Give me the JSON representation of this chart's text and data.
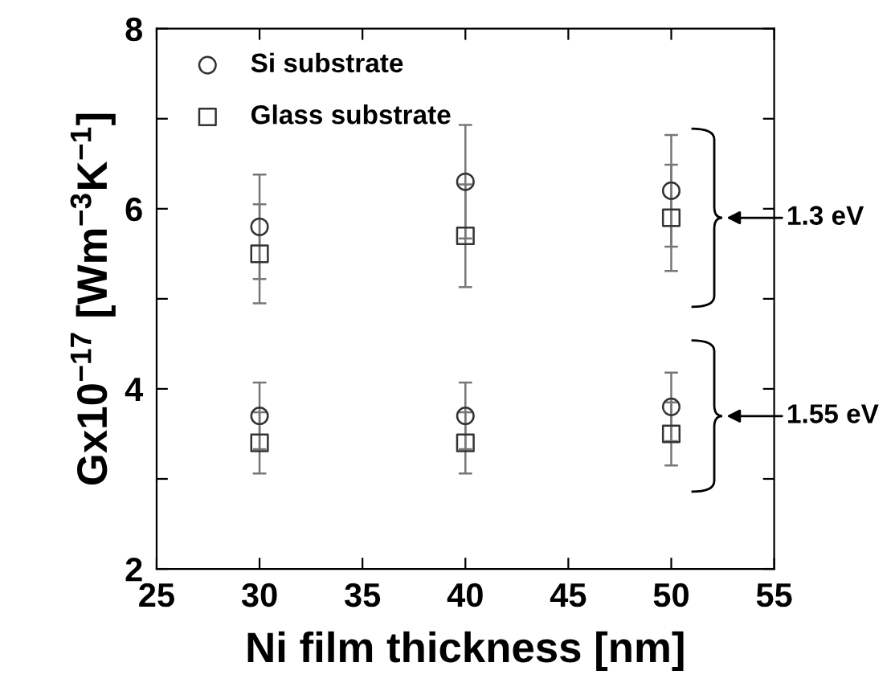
{
  "chart_data": {
    "type": "scatter",
    "xlabel": "Ni film thickness [nm]",
    "ylabel": "Gx10$^{−17}$ [Wm$^{−3}$K$^{−1}$]",
    "series": [
      {
        "name": "Si substrate",
        "color": "#333333",
        "marker": "circle",
        "x": [
          30,
          40,
          50,
          30,
          40,
          50
        ],
        "values": [
          5.8,
          6.3,
          6.2,
          3.7,
          3.7,
          3.8
        ],
        "errors": [
          0.58,
          0.63,
          0.62,
          0.37,
          0.37,
          0.38
        ]
      },
      {
        "name": "Glass substrate",
        "color": "#333333",
        "marker": "square",
        "x": [
          30,
          40,
          50,
          30,
          40,
          50
        ],
        "values": [
          5.5,
          5.7,
          5.9,
          3.4,
          3.4,
          3.5
        ],
        "errors": [
          0.55,
          0.57,
          0.59,
          0.34,
          0.34,
          0.35
        ]
      }
    ],
    "annotations": [
      "1.3 eV",
      "1.55 eV"
    ],
    "xlim": [
      25,
      55
    ],
    "xticks": [
      25,
      30,
      35,
      40,
      45,
      50,
      55
    ],
    "ylim": [
      2,
      8
    ],
    "yticks": [
      2,
      {
        "value": 3,
        "label": null
      },
      4,
      {
        "value": 5,
        "label": null
      },
      6,
      {
        "value": 7,
        "label": null
      },
      8
    ],
    "grid": false,
    "legend": "top left"
  }
}
